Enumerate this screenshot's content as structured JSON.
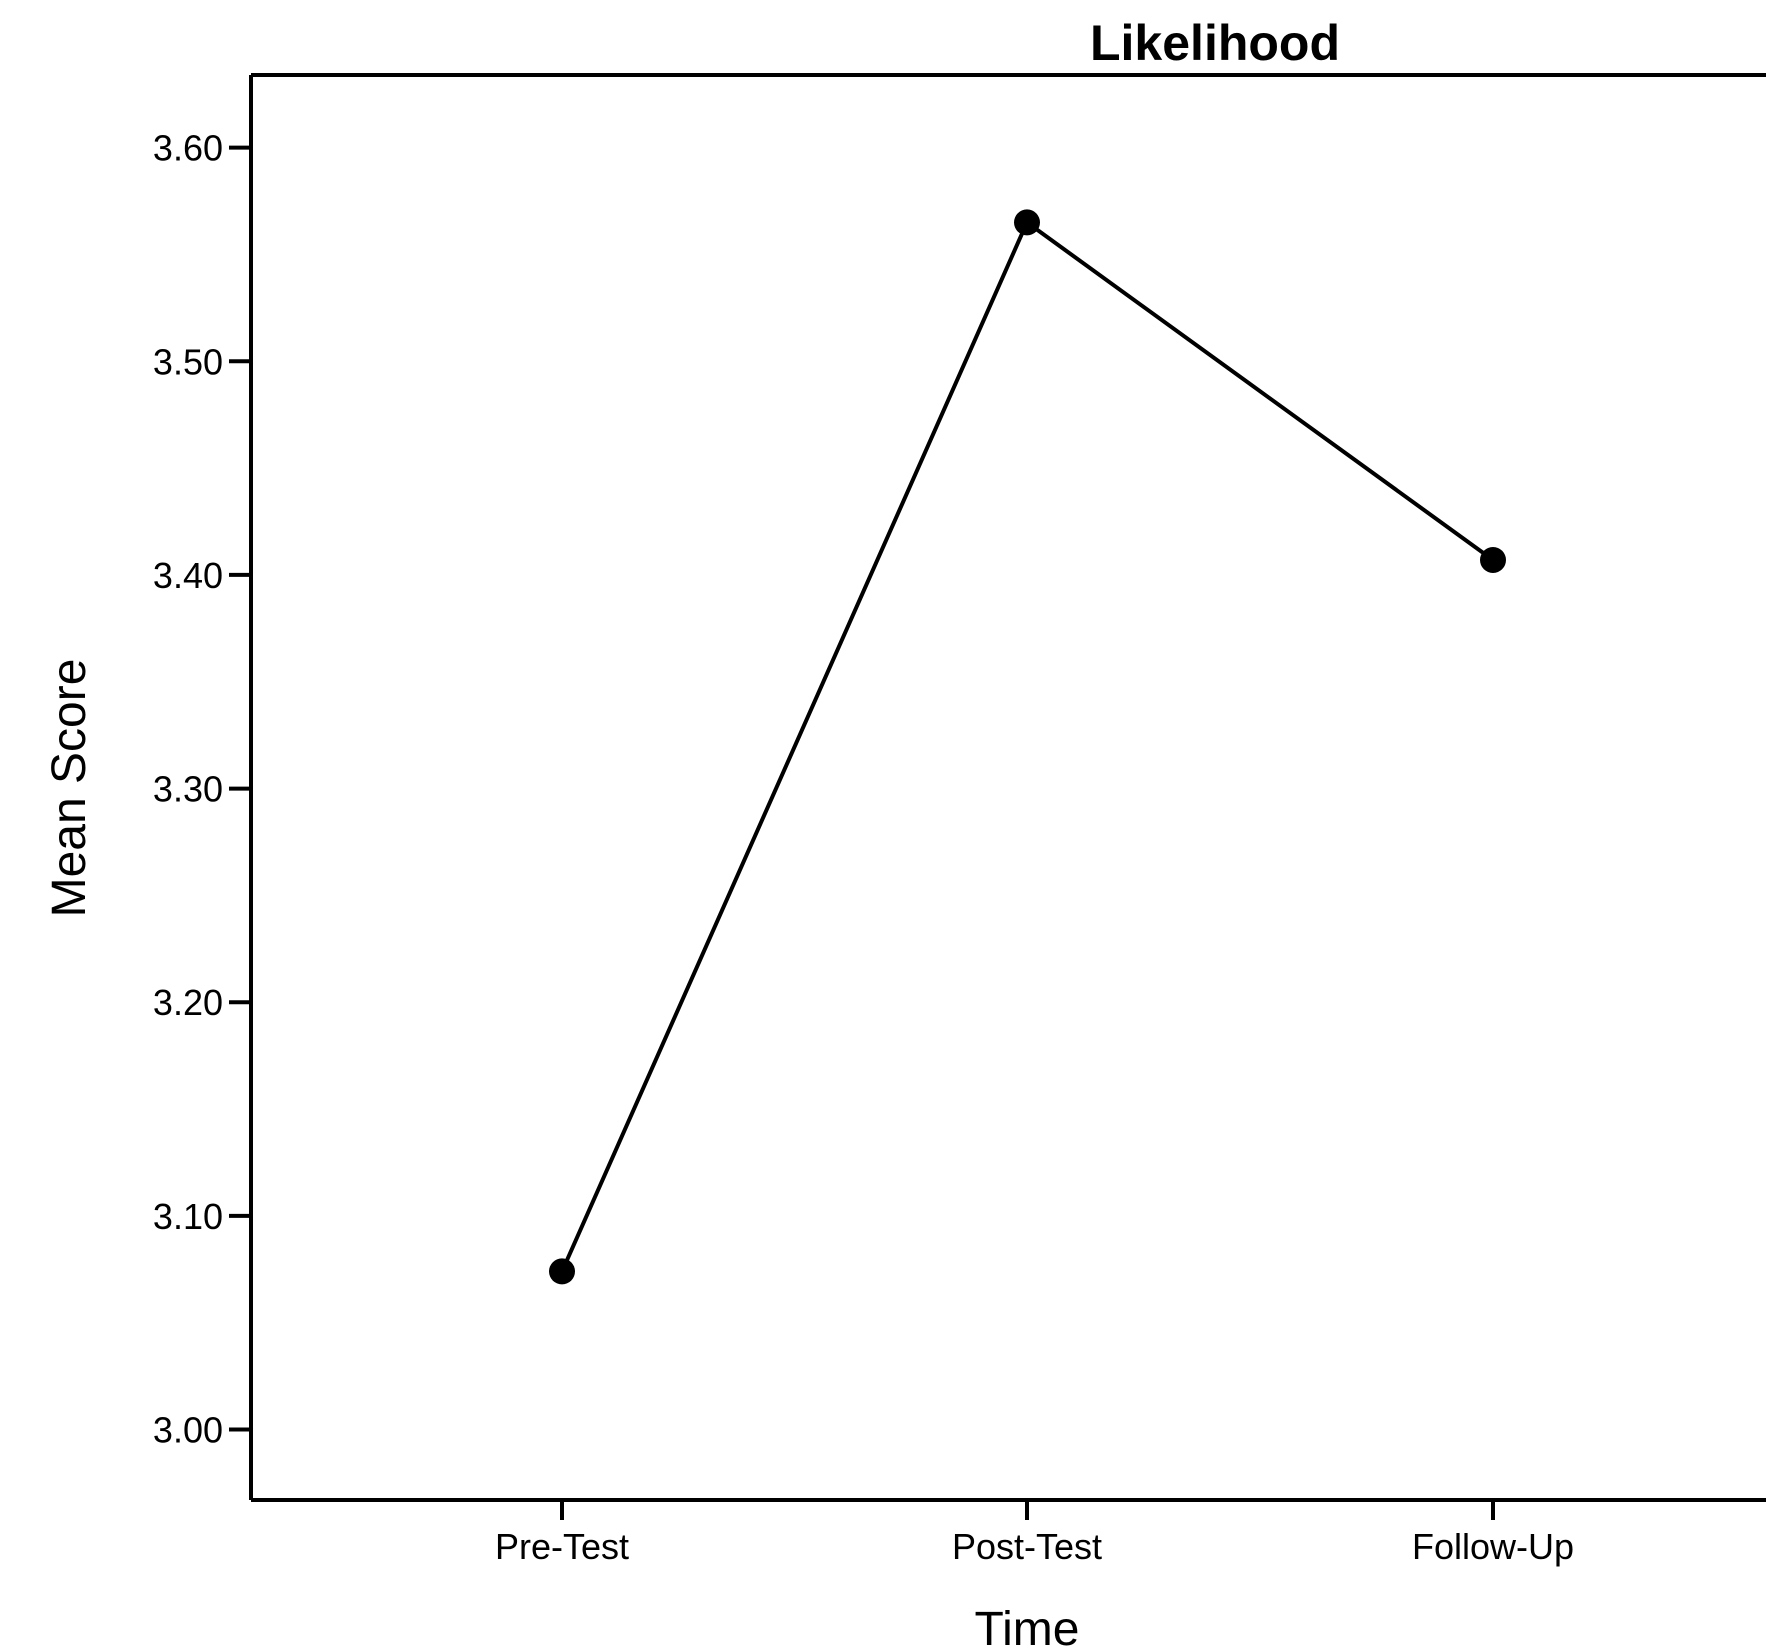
{
  "chart_data": {
    "type": "line",
    "title": "Likelihood",
    "xlabel": "Time",
    "ylabel": "Mean Score",
    "categories": [
      "Pre-Test",
      "Post-Test",
      "Follow-Up"
    ],
    "values": [
      3.074,
      3.565,
      3.407
    ],
    "ylim": [
      2.967,
      3.634
    ],
    "yticks": [
      "3.00",
      "3.10",
      "3.20",
      "3.30",
      "3.40",
      "3.50",
      "3.60"
    ],
    "grid": false,
    "legend": "none",
    "colors": {
      "line": "#000000",
      "marker": "#000000",
      "frame": "#000000"
    }
  }
}
